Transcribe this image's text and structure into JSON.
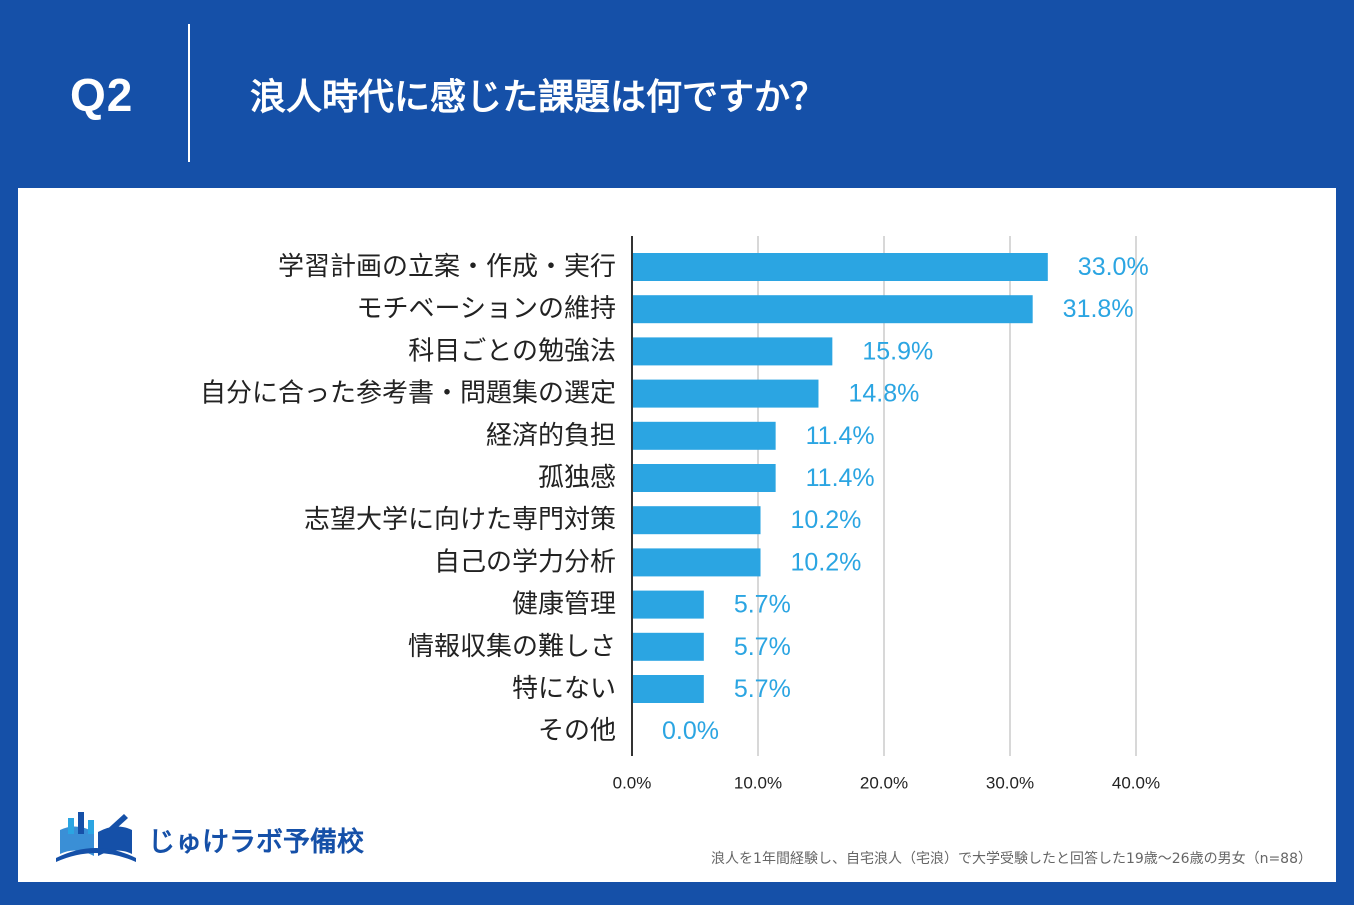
{
  "header": {
    "question_label": "Q2",
    "question_text": "浪人時代に感じた課題は何ですか？"
  },
  "chart_data": {
    "type": "bar",
    "orientation": "horizontal",
    "categories": [
      "学習計画の立案・作成・実行",
      "モチベーションの維持",
      "科目ごとの勉強法",
      "自分に合った参考書・問題集の選定",
      "経済的負担",
      "孤独感",
      "志望大学に向けた専門対策",
      "自己の学力分析",
      "健康管理",
      "情報収集の難しさ",
      "特にない",
      "その他"
    ],
    "values": [
      33.0,
      31.8,
      15.9,
      14.8,
      11.4,
      11.4,
      10.2,
      10.2,
      5.7,
      5.7,
      5.7,
      0.0
    ],
    "data_labels": [
      "33.0%",
      "31.8%",
      "15.9%",
      "14.8%",
      "11.4%",
      "11.4%",
      "10.2%",
      "10.2%",
      "5.7%",
      "5.7%",
      "5.7%",
      "0.0%"
    ],
    "xlim": [
      0,
      40
    ],
    "x_ticks": [
      0,
      10,
      20,
      30,
      40
    ],
    "x_tick_labels": [
      "0.0%",
      "10.0%",
      "20.0%",
      "30.0%",
      "40.0%"
    ],
    "grid": true,
    "bar_color": "#2BA5E2",
    "label_color": "#2BA5E2"
  },
  "logo": {
    "text": "じゅけラボ予備校",
    "icon": "open-book-icon"
  },
  "footnote": "浪人を1年間経験し、自宅浪人（宅浪）で大学受験したと回答した19歳～26歳の男女（n=88）",
  "colors": {
    "background": "#1550A8",
    "panel": "#FFFFFF",
    "gridline": "#CCCCCC",
    "axis": "#333333",
    "category_text": "#222222",
    "tick_text": "#222222",
    "footnote_text": "#666666",
    "logo_blue": "#1550A8"
  }
}
